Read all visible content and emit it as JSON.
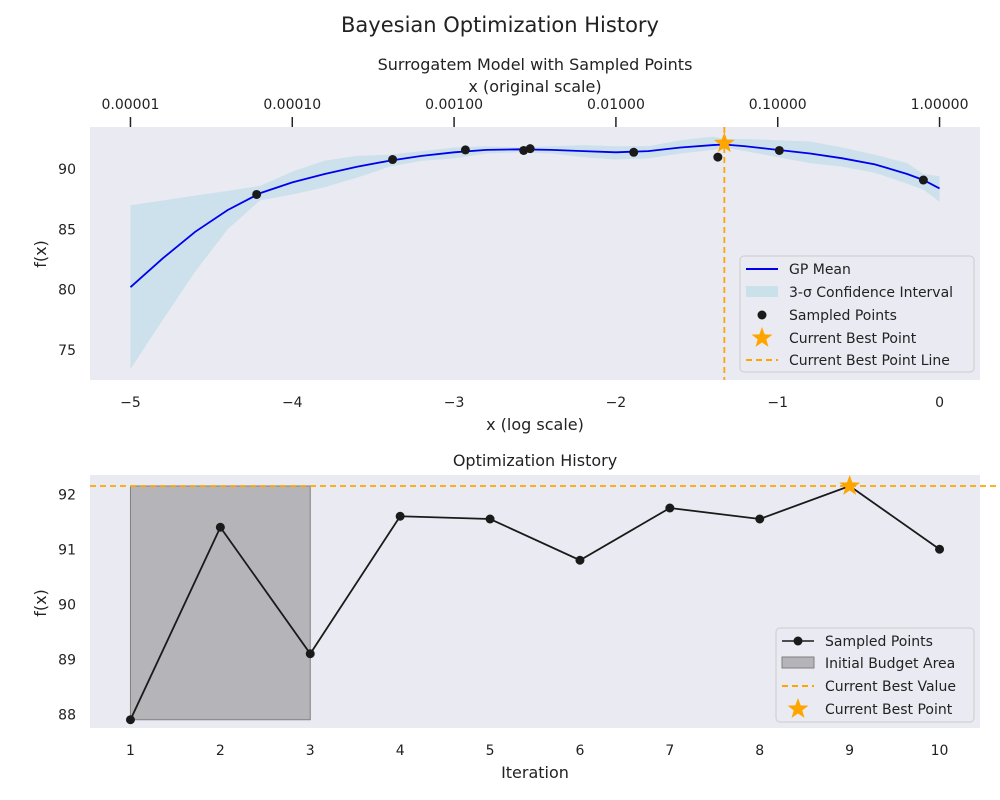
{
  "figure": {
    "suptitle": "Bayesian Optimization History"
  },
  "colors": {
    "axes_bg": "#eaeaf2",
    "gp_mean": "#0000ee",
    "confidence": "#add8e6",
    "point": "#1a1a1a",
    "best": "#ffa500",
    "initial_area": "#808080",
    "history_line": "#1a1a1a"
  },
  "chart_data": [
    {
      "type": "line",
      "title": "Surrogatem Model with Sampled Points",
      "xlabel": "x (log scale)",
      "ylabel": "f(x)",
      "xlim": [
        -5.25,
        0.25
      ],
      "ylim": [
        72.5,
        93.5
      ],
      "grid": false,
      "x_ticks": [
        -5,
        -4,
        -3,
        -2,
        -1,
        0
      ],
      "x_tick_labels": [
        "−5",
        "−4",
        "−3",
        "−2",
        "−1",
        "0"
      ],
      "y_ticks": [
        75,
        80,
        85,
        90
      ],
      "y_tick_labels": [
        "75",
        "80",
        "85",
        "90"
      ],
      "top_axis": {
        "label": "x (original scale)",
        "ticks": [
          -5,
          -4,
          -3,
          -2,
          -1,
          0
        ],
        "tick_labels": [
          "0.00001",
          "0.00010",
          "0.00100",
          "0.01000",
          "0.10000",
          "1.00000"
        ]
      },
      "gp_mean": {
        "name": "GP Mean",
        "x": [
          -5,
          -4.8,
          -4.6,
          -4.4,
          -4.2,
          -4.0,
          -3.8,
          -3.6,
          -3.4,
          -3.2,
          -3.0,
          -2.8,
          -2.6,
          -2.4,
          -2.2,
          -2.0,
          -1.8,
          -1.6,
          -1.4,
          -1.33,
          -1.2,
          -1.0,
          -0.8,
          -0.6,
          -0.4,
          -0.2,
          -0.1,
          0
        ],
        "y": [
          80.2,
          82.6,
          84.8,
          86.6,
          88.0,
          88.9,
          89.6,
          90.2,
          90.7,
          91.1,
          91.4,
          91.6,
          91.65,
          91.6,
          91.5,
          91.4,
          91.5,
          91.8,
          92.0,
          92.05,
          91.9,
          91.6,
          91.3,
          90.9,
          90.4,
          89.6,
          89.1,
          88.4
        ]
      },
      "confidence": {
        "name": "3-σ Confidence Interval",
        "x": [
          -5,
          -4.8,
          -4.6,
          -4.4,
          -4.2,
          -4.0,
          -3.8,
          -3.6,
          -3.4,
          -3.2,
          -3.0,
          -2.8,
          -2.6,
          -2.4,
          -2.2,
          -2.0,
          -1.8,
          -1.6,
          -1.4,
          -1.33,
          -1.2,
          -1.0,
          -0.8,
          -0.6,
          -0.4,
          -0.2,
          -0.1,
          0
        ],
        "upper": [
          87.0,
          87.4,
          87.8,
          88.2,
          88.6,
          89.8,
          90.7,
          91.1,
          91.2,
          91.5,
          91.8,
          91.9,
          91.8,
          91.9,
          92.0,
          91.9,
          91.9,
          92.4,
          92.7,
          92.5,
          92.5,
          92.4,
          92.3,
          91.8,
          91.2,
          90.5,
          89.6,
          89.4
        ],
        "lower": [
          73.4,
          77.5,
          81.5,
          85.0,
          87.4,
          87.9,
          88.5,
          89.3,
          90.2,
          90.7,
          90.9,
          91.3,
          91.4,
          91.3,
          91.0,
          90.8,
          90.9,
          91.3,
          91.6,
          91.8,
          91.5,
          91.0,
          90.5,
          90.2,
          89.7,
          88.8,
          88.3,
          87.3
        ]
      },
      "sampled_points": {
        "name": "Sampled Points",
        "x": [
          -4.22,
          -3.38,
          -2.93,
          -2.57,
          -2.53,
          -1.89,
          -1.37,
          -0.99,
          -0.1
        ],
        "y": [
          87.9,
          90.8,
          91.6,
          91.55,
          91.7,
          91.4,
          91.0,
          91.55,
          89.1
        ]
      },
      "best_point": {
        "name": "Current Best Point",
        "x": -1.33,
        "y": 92.15
      },
      "best_line": {
        "name": "Current Best Point Line",
        "x": -1.33
      },
      "legend": "lower-right"
    },
    {
      "type": "line",
      "title": "Optimization History",
      "xlabel": "Iteration",
      "ylabel": "f(x)",
      "xlim": [
        0.55,
        10.45
      ],
      "ylim": [
        87.75,
        92.35
      ],
      "grid": false,
      "x_ticks": [
        1,
        2,
        3,
        4,
        5,
        6,
        7,
        8,
        9,
        10
      ],
      "x_tick_labels": [
        "1",
        "2",
        "3",
        "4",
        "5",
        "6",
        "7",
        "8",
        "9",
        "10"
      ],
      "y_ticks": [
        88,
        89,
        90,
        91,
        92
      ],
      "y_tick_labels": [
        "88",
        "89",
        "90",
        "91",
        "92"
      ],
      "series": [
        {
          "name": "Sampled Points",
          "x": [
            1,
            2,
            3,
            4,
            5,
            6,
            7,
            8,
            9,
            10
          ],
          "y": [
            87.9,
            91.4,
            89.1,
            91.6,
            91.55,
            90.8,
            91.75,
            91.55,
            92.15,
            91.0
          ]
        }
      ],
      "initial_area": {
        "name": "Initial Budget Area",
        "x": [
          1,
          3
        ],
        "y": [
          87.9,
          92.15
        ]
      },
      "best_value": {
        "name": "Current Best Value",
        "y": 92.15
      },
      "best_point": {
        "name": "Current Best Point",
        "x": 9,
        "y": 92.15
      },
      "legend": "lower-right"
    }
  ]
}
